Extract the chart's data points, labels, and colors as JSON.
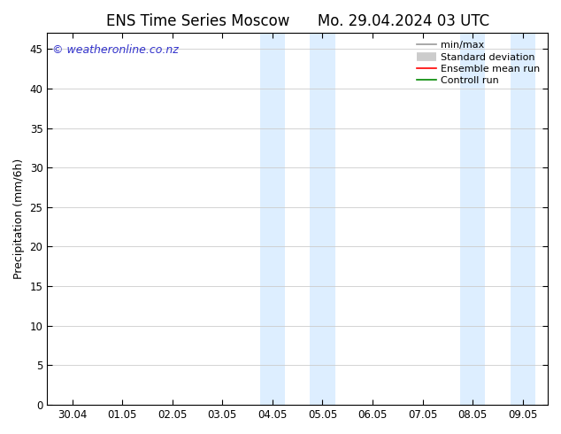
{
  "title_left": "ENS Time Series Moscow",
  "title_right": "Mo. 29.04.2024 03 UTC",
  "ylabel": "Precipitation (mm/6h)",
  "ylim": [
    0,
    47
  ],
  "yticks": [
    0,
    5,
    10,
    15,
    20,
    25,
    30,
    35,
    40,
    45
  ],
  "xtick_labels": [
    "30.04",
    "01.05",
    "02.05",
    "03.05",
    "04.05",
    "05.05",
    "06.05",
    "07.05",
    "08.05",
    "09.05"
  ],
  "xtick_positions": [
    0,
    1,
    2,
    3,
    4,
    5,
    6,
    7,
    8,
    9
  ],
  "xlim": [
    -0.5,
    9.5
  ],
  "shaded_regions": [
    {
      "xstart": 3.75,
      "xend": 4.25,
      "label": "band1_left"
    },
    {
      "xstart": 4.75,
      "xend": 5.25,
      "label": "band1_right"
    },
    {
      "xstart": 7.75,
      "xend": 8.25,
      "label": "band2_left"
    },
    {
      "xstart": 8.75,
      "xend": 9.25,
      "label": "band2_right"
    }
  ],
  "shade_color": "#ddeeff",
  "watermark": "© weatheronline.co.nz",
  "watermark_color": "#3333cc",
  "legend_items": [
    {
      "label": "min/max",
      "color": "#999999",
      "lw": 1.2
    },
    {
      "label": "Standard deviation",
      "color": "#cccccc",
      "lw": 7
    },
    {
      "label": "Ensemble mean run",
      "color": "#ff0000",
      "lw": 1.2
    },
    {
      "label": "Controll run",
      "color": "#008800",
      "lw": 1.2
    }
  ],
  "bg_color": "#ffffff",
  "grid_color": "#cccccc",
  "title_fontsize": 12,
  "tick_fontsize": 8.5,
  "ylabel_fontsize": 9,
  "watermark_fontsize": 9,
  "legend_fontsize": 8
}
